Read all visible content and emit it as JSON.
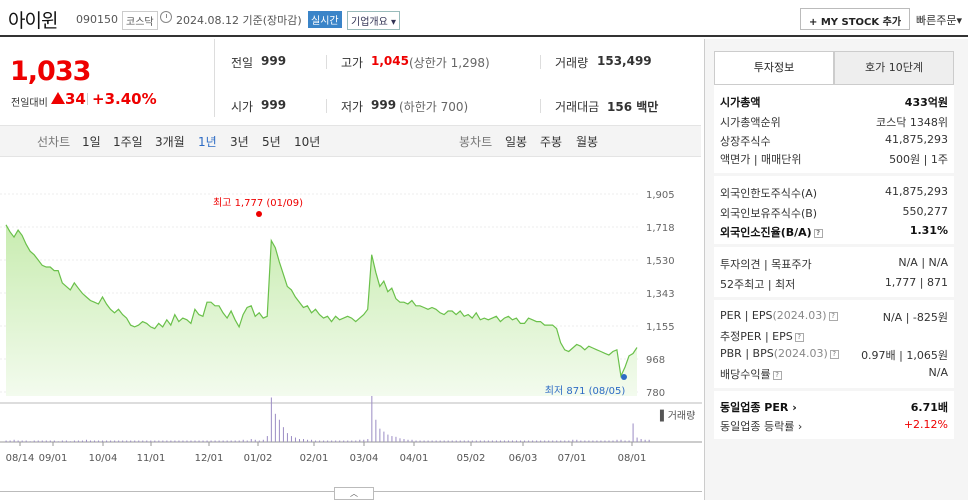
{
  "header": {
    "stock_name": "아이윈",
    "stock_code": "090150",
    "market": "코스닥",
    "date": "2024.08.12 기준(장마감)",
    "realtime_label": "실시간",
    "company_info_label": "기업개요",
    "mystock_label": "+ MY STOCK 추가",
    "quick_order_label": "빠른주문"
  },
  "price": {
    "current": "1,033",
    "change_label": "전일대비",
    "change_amount": "34",
    "change_percent": "+3.40%",
    "direction": "up"
  },
  "quote": {
    "prev_close": {
      "label": "전일",
      "value": "999"
    },
    "high": {
      "label": "고가",
      "value": "1,045",
      "sub": "(상한가 1,298)"
    },
    "volume": {
      "label": "거래량",
      "value": "153,499"
    },
    "open": {
      "label": "시가",
      "value": "999"
    },
    "low": {
      "label": "저가",
      "value": "999",
      "sub": "(하한가 700)"
    },
    "amount": {
      "label": "거래대금",
      "value": "156 백만"
    }
  },
  "period": {
    "line_label": "선차트",
    "line_options": [
      "1일",
      "1주일",
      "3개월",
      "1년",
      "3년",
      "5년",
      "10년"
    ],
    "active": "1년",
    "candle_label": "봉차트",
    "candle_options": [
      "일봉",
      "주봉",
      "월봉"
    ]
  },
  "chart_data": {
    "type": "area",
    "title": "",
    "ylabel": "",
    "y_ticks": [
      "1,905",
      "1,718",
      "1,530",
      "1,343",
      "1,155",
      "968",
      "780"
    ],
    "ylim": [
      780,
      1905
    ],
    "x_ticks": [
      "08/14",
      "09/01",
      "10/04",
      "11/01",
      "12/01",
      "01/02",
      "02/01",
      "03/04",
      "04/01",
      "05/02",
      "06/03",
      "07/01",
      "08/01"
    ],
    "high_annotation": "최고 1,777 (01/09)",
    "low_annotation": "최저 871 (08/05)",
    "volume_label": "거래량",
    "series": [
      {
        "values": [
          1730,
          1690,
          1660,
          1700,
          1670,
          1620,
          1580,
          1560,
          1530,
          1500,
          1490,
          1490,
          1470,
          1470,
          1400,
          1380,
          1360,
          1400,
          1370,
          1340,
          1320,
          1300,
          1290,
          1280,
          1320,
          1280,
          1250,
          1230,
          1250,
          1220,
          1200,
          1160,
          1150,
          1160,
          1180,
          1170,
          1150,
          1140,
          1170,
          1150,
          1190,
          1160,
          1220,
          1180,
          1200,
          1190,
          1170,
          1250,
          1220,
          1210,
          1290,
          1290,
          1270,
          1270,
          1230,
          1200,
          1240,
          1190,
          1150,
          1220,
          1260,
          1270,
          1210,
          1230,
          1200,
          1210,
          1640,
          1600,
          1520,
          1450,
          1380,
          1360,
          1320,
          1290,
          1260,
          1270,
          1230,
          1250,
          1220,
          1200,
          1210,
          1180,
          1210,
          1190,
          1200,
          1210,
          1200,
          1180,
          1200,
          1220,
          1250,
          1560,
          1460,
          1380,
          1410,
          1350,
          1370,
          1310,
          1290,
          1290,
          1280,
          1300,
          1270,
          1270,
          1260,
          1250,
          1260,
          1250,
          1230,
          1220,
          1240,
          1240,
          1220,
          1240,
          1210,
          1220,
          1200,
          1230,
          1190,
          1200,
          1190,
          1200,
          1210,
          1180,
          1200,
          1210,
          1190,
          1200,
          1170,
          1170,
          1200,
          1190,
          1180,
          1180,
          1160,
          1160,
          1160,
          1140,
          1060,
          1020,
          1010,
          1030,
          1050,
          1040,
          1020,
          1040,
          1030,
          1020,
          1010,
          1000,
          990,
          1010,
          1020,
          871,
          920,
          985,
          999,
          1033
        ]
      }
    ],
    "volume_series": [
      2,
      2,
      3,
      2,
      2,
      2,
      1,
      2,
      2,
      2,
      2,
      2,
      2,
      1,
      2,
      2,
      1,
      2,
      2,
      2,
      3,
      2,
      2,
      2,
      2,
      2,
      2,
      2,
      2,
      2,
      2,
      2,
      2,
      2,
      2,
      2,
      2,
      2,
      2,
      2,
      2,
      2,
      2,
      2,
      2,
      2,
      2,
      2,
      2,
      2,
      2,
      2,
      2,
      2,
      2,
      2,
      2,
      2,
      2,
      3,
      2,
      4,
      3,
      2,
      3,
      8,
      60,
      38,
      30,
      20,
      12,
      8,
      6,
      4,
      4,
      3,
      3,
      2,
      2,
      2,
      2,
      2,
      2,
      2,
      2,
      2,
      2,
      2,
      3,
      3,
      4,
      62,
      30,
      18,
      14,
      10,
      8,
      7,
      5,
      4,
      3,
      3,
      2,
      2,
      2,
      2,
      2,
      2,
      2,
      2,
      2,
      2,
      2,
      2,
      2,
      2,
      2,
      2,
      2,
      2,
      2,
      2,
      2,
      2,
      2,
      2,
      2,
      2,
      2,
      2,
      2,
      2,
      2,
      2,
      2,
      2,
      2,
      2,
      2,
      2,
      2,
      3,
      3,
      2,
      2,
      2,
      2,
      2,
      2,
      2,
      2,
      2,
      3,
      3,
      2,
      2,
      25,
      6,
      4,
      3,
      3
    ]
  },
  "right_panel": {
    "tabs": [
      "투자정보",
      "호가 10단계"
    ],
    "active_tab": "투자정보",
    "section1": [
      {
        "label": "시가총액",
        "value": "433억원",
        "bold": true
      },
      {
        "label": "시가총액순위",
        "value": "코스닥 1348위"
      },
      {
        "label": "상장주식수",
        "value": "41,875,293"
      },
      {
        "label": "액면가 | 매매단위",
        "value": "500원 | 1주"
      }
    ],
    "section2": [
      {
        "label": "외국인한도주식수(A)",
        "value": "41,875,293"
      },
      {
        "label": "외국인보유주식수(B)",
        "value": "550,277"
      },
      {
        "label": "외국인소진율(B/A)",
        "value": "1.31%",
        "bold": true
      }
    ],
    "section3": [
      {
        "label": "투자의견 | 목표주가",
        "value": "N/A | N/A"
      },
      {
        "label": "52주최고 | 최저",
        "value": "1,777 | 871"
      }
    ],
    "section4": [
      {
        "label": "PER | EPS",
        "label_sub": "(2024.03)",
        "value": "N/A | -825원"
      },
      {
        "label": "추정PER | EPS",
        "value": ""
      },
      {
        "label": "PBR | BPS",
        "label_sub": "(2024.03)",
        "value": "0.97배 | 1,065원"
      },
      {
        "label": "배당수익률",
        "value": "N/A"
      }
    ],
    "section5": [
      {
        "label": "동일업종 PER",
        "value": "6.71배",
        "bold": true
      },
      {
        "label": "동일업종 등락률",
        "value": "+2.12%",
        "red": true
      }
    ]
  },
  "colors": {
    "up": "#ee0000",
    "line": "#6ac04a",
    "fill_top": "#c8ecb0",
    "fill_bottom": "#f3fbee",
    "active_period": "#2d6bc4"
  }
}
